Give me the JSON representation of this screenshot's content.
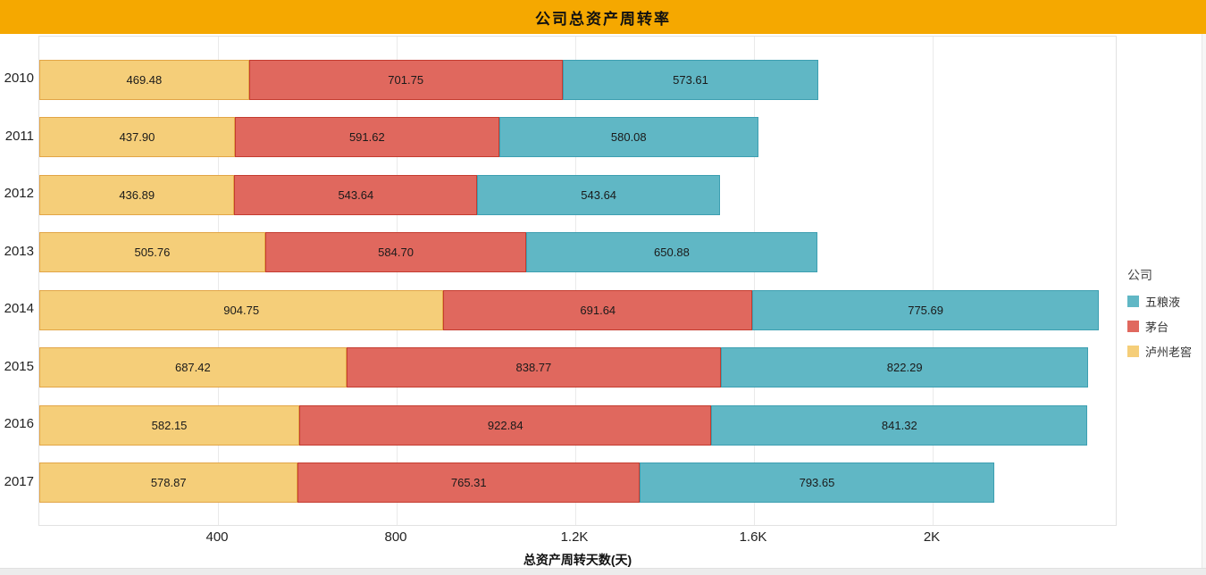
{
  "header": {
    "title": "公司总资产周转率"
  },
  "legend": {
    "title": "公司",
    "items": [
      {
        "label": "五粮液",
        "color": "#60B7C5"
      },
      {
        "label": "茅台",
        "color": "#E0685E"
      },
      {
        "label": "泸州老窖",
        "color": "#F5CE79"
      }
    ]
  },
  "x_axis": {
    "label": "总资产周转天数(天)",
    "tick_labels": [
      "400",
      "800",
      "1.2K",
      "1.6K",
      "2K"
    ]
  },
  "colors": {
    "banner": "#F5A800",
    "grid": "#EAEAEA",
    "plot_border": "#E2E2E2"
  },
  "chart_data": {
    "type": "bar",
    "orientation": "horizontal",
    "stacked": true,
    "title": "公司总资产周转率",
    "xlabel": "总资产周转天数(天)",
    "ylabel": "",
    "categories": [
      "2010",
      "2011",
      "2012",
      "2013",
      "2014",
      "2015",
      "2016",
      "2017"
    ],
    "series": [
      {
        "name": "泸州老窖",
        "color": "#F5CE79",
        "border_color": "#E2A546",
        "values": [
          469.48,
          437.9,
          436.89,
          505.76,
          904.75,
          687.42,
          582.15,
          578.87
        ]
      },
      {
        "name": "茅台",
        "color": "#E0685E",
        "border_color": "#C43C30",
        "values": [
          701.75,
          591.62,
          543.64,
          584.7,
          691.64,
          838.77,
          922.84,
          765.31
        ]
      },
      {
        "name": "五粮液",
        "color": "#60B7C5",
        "border_color": "#3D9FB1",
        "values": [
          573.61,
          580.08,
          543.64,
          650.88,
          775.69,
          822.29,
          841.32,
          793.65
        ]
      }
    ],
    "xlim": [
      0,
      2414
    ],
    "x_ticks": [
      400,
      800,
      1200,
      1600,
      2000
    ],
    "x_tick_labels": [
      "400",
      "800",
      "1.2K",
      "1.6K",
      "2K"
    ],
    "grid": "vertical",
    "legend_position": "right",
    "legend_order": [
      "五粮液",
      "茅台",
      "泸州老窖"
    ],
    "value_labels": "inside, two decimals"
  }
}
